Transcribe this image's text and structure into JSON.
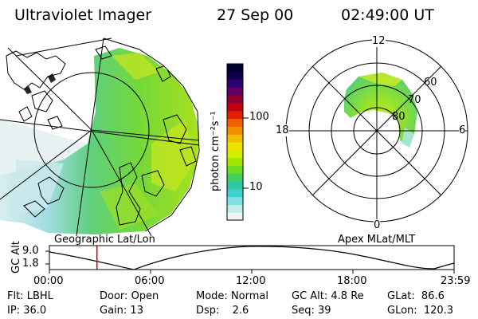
{
  "header": {
    "title": "Ultraviolet Imager",
    "date": "27 Sep 00",
    "time": "02:49:00 UT"
  },
  "colorbar": {
    "label": "photon cm⁻²s⁻¹",
    "ticks": [
      "100",
      "10"
    ],
    "colors": [
      "#000030",
      "#100050",
      "#300070",
      "#600060",
      "#900030",
      "#c00010",
      "#e02000",
      "#f06000",
      "#f09000",
      "#f0c000",
      "#f0e000",
      "#d0f000",
      "#a0e800",
      "#70dc20",
      "#40d060",
      "#30c8a0",
      "#40d0d0",
      "#80e0e0",
      "#c0ecec",
      "#f0f4f4"
    ]
  },
  "left_panel": {
    "caption": "Geographic Lat/Lon",
    "land_color": "#000000"
  },
  "right_panel": {
    "caption": "Apex MLat/MLT",
    "mlt_labels": {
      "top": "12",
      "bottom": "0",
      "left": "18",
      "right": "6"
    },
    "lat_labels": [
      "60",
      "70",
      "80"
    ]
  },
  "altitude_plot": {
    "ylabel": "GC Alt",
    "yticks": [
      "9.0",
      "1.8"
    ],
    "xticks": [
      "00:00",
      "06:00",
      "12:00",
      "18:00",
      "23:59"
    ],
    "current_time_marker_hours": 2.82,
    "marker_color": "#cc0000"
  },
  "footer": {
    "filter_label": "Flt:",
    "filter_value": "LBHL",
    "ip_label": "IP:",
    "ip_value": "36.0",
    "door_label": "Door:",
    "door_value": "Open",
    "gain_label": "Gain:",
    "gain_value": "13",
    "mode_label": "Mode:",
    "mode_value": "Normal",
    "dsp_label": "Dsp:",
    "dsp_value": "2.6",
    "gcalt_label": "GC Alt:",
    "gcalt_value": "4.8 Re",
    "seq_label": "Seq:",
    "seq_value": "39",
    "glat_label": "GLat:",
    "glat_value": "86.6",
    "glon_label": "GLon:",
    "glon_value": "120.3"
  }
}
